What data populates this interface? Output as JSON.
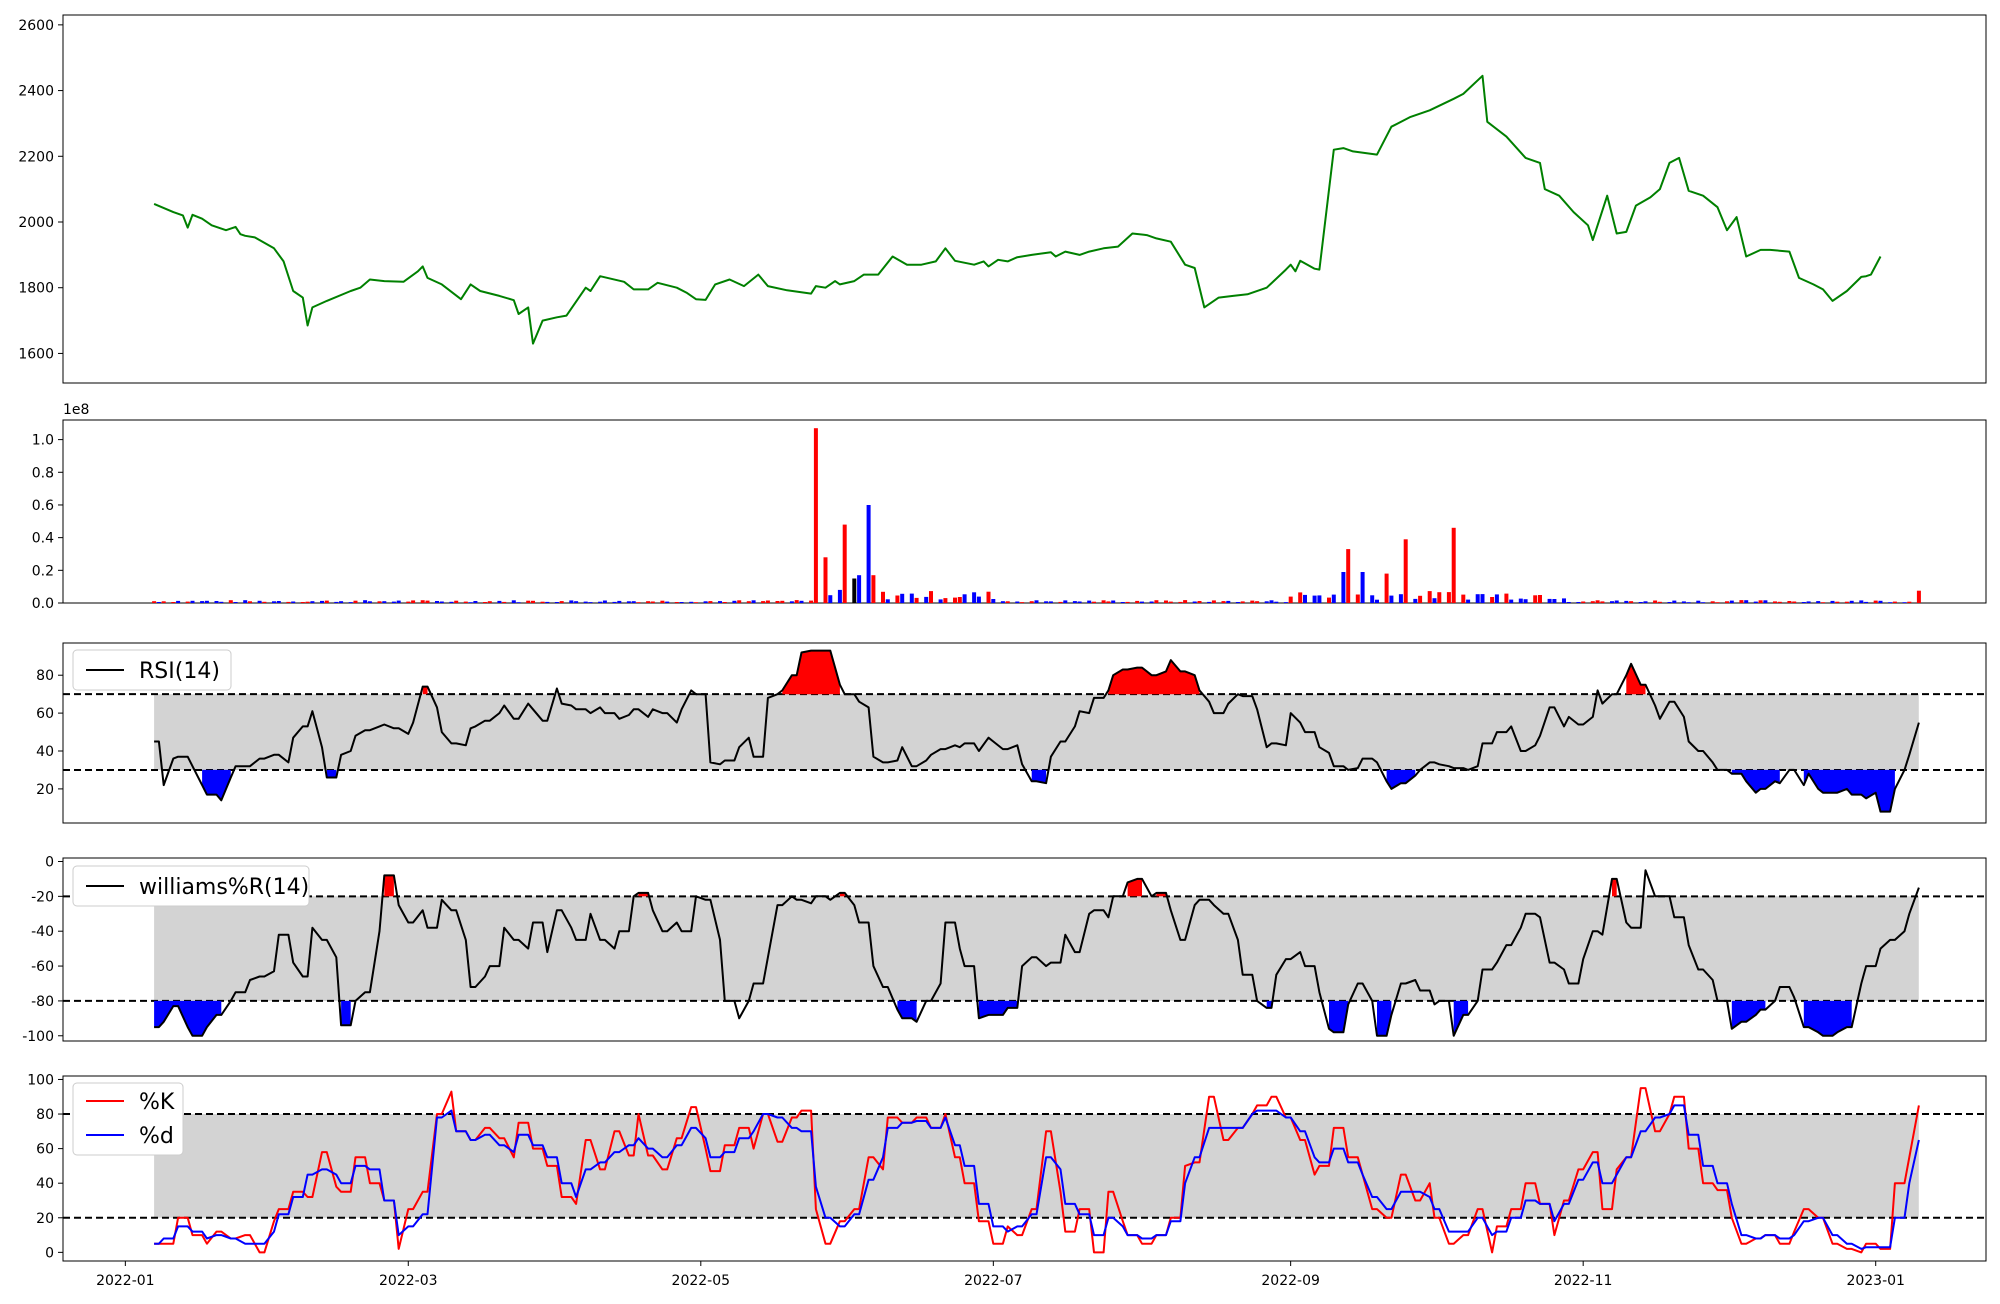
{
  "chart_data": [
    {
      "type": "line",
      "panel": "price",
      "x_range": [
        "2021-12-19",
        "2023-01-24"
      ],
      "ylim": [
        1510,
        2630
      ],
      "yticks": [
        1600,
        1800,
        2000,
        2200,
        2400,
        2600
      ],
      "series": [
        {
          "color": "#008000",
          "points": [
            [
              "2022-01-07",
              2055
            ],
            [
              "2022-01-11",
              2030
            ],
            [
              "2022-01-13",
              2020
            ],
            [
              "2022-01-14",
              1983
            ],
            [
              "2022-01-15",
              2022
            ],
            [
              "2022-01-17",
              2010
            ],
            [
              "2022-01-19",
              1990
            ],
            [
              "2022-01-22",
              1975
            ],
            [
              "2022-01-24",
              1985
            ],
            [
              "2022-01-25",
              1963
            ],
            [
              "2022-01-26",
              1958
            ],
            [
              "2022-01-28",
              1953
            ],
            [
              "2022-02-01",
              1920
            ],
            [
              "2022-02-03",
              1880
            ],
            [
              "2022-02-05",
              1790
            ],
            [
              "2022-02-07",
              1770
            ],
            [
              "2022-02-08",
              1685
            ],
            [
              "2022-02-09",
              1740
            ],
            [
              "2022-02-12",
              1760
            ],
            [
              "2022-02-17",
              1790
            ],
            [
              "2022-02-19",
              1800
            ],
            [
              "2022-02-21",
              1825
            ],
            [
              "2022-02-24",
              1820
            ],
            [
              "2022-02-28",
              1818
            ],
            [
              "2022-03-03",
              1850
            ],
            [
              "2022-03-04",
              1865
            ],
            [
              "2022-03-05",
              1830
            ],
            [
              "2022-03-08",
              1810
            ],
            [
              "2022-03-12",
              1765
            ],
            [
              "2022-03-14",
              1810
            ],
            [
              "2022-03-16",
              1790
            ],
            [
              "2022-03-20",
              1775
            ],
            [
              "2022-03-23",
              1762
            ],
            [
              "2022-03-24",
              1720
            ],
            [
              "2022-03-26",
              1740
            ],
            [
              "2022-03-27",
              1630
            ],
            [
              "2022-03-29",
              1700
            ],
            [
              "2022-04-01",
              1710
            ],
            [
              "2022-04-03",
              1715
            ],
            [
              "2022-04-07",
              1800
            ],
            [
              "2022-04-08",
              1790
            ],
            [
              "2022-04-10",
              1835
            ],
            [
              "2022-04-15",
              1818
            ],
            [
              "2022-04-17",
              1795
            ],
            [
              "2022-04-20",
              1795
            ],
            [
              "2022-04-22",
              1815
            ],
            [
              "2022-04-26",
              1800
            ],
            [
              "2022-04-28",
              1785
            ],
            [
              "2022-04-30",
              1765
            ],
            [
              "2022-05-02",
              1763
            ],
            [
              "2022-05-04",
              1810
            ],
            [
              "2022-05-07",
              1825
            ],
            [
              "2022-05-10",
              1805
            ],
            [
              "2022-05-13",
              1840
            ],
            [
              "2022-05-15",
              1805
            ],
            [
              "2022-05-19",
              1792
            ],
            [
              "2022-05-24",
              1782
            ],
            [
              "2022-05-25",
              1805
            ],
            [
              "2022-05-27",
              1800
            ],
            [
              "2022-05-29",
              1820
            ],
            [
              "2022-05-30",
              1810
            ],
            [
              "2022-06-02",
              1820
            ],
            [
              "2022-06-04",
              1840
            ],
            [
              "2022-06-07",
              1840
            ],
            [
              "2022-06-10",
              1895
            ],
            [
              "2022-06-13",
              1870
            ],
            [
              "2022-06-16",
              1870
            ],
            [
              "2022-06-19",
              1880
            ],
            [
              "2022-06-21",
              1920
            ],
            [
              "2022-06-23",
              1882
            ],
            [
              "2022-06-27",
              1870
            ],
            [
              "2022-06-29",
              1880
            ],
            [
              "2022-06-30",
              1865
            ],
            [
              "2022-07-02",
              1885
            ],
            [
              "2022-07-04",
              1880
            ],
            [
              "2022-07-06",
              1893
            ],
            [
              "2022-07-09",
              1900
            ],
            [
              "2022-07-13",
              1908
            ],
            [
              "2022-07-14",
              1895
            ],
            [
              "2022-07-16",
              1910
            ],
            [
              "2022-07-19",
              1900
            ],
            [
              "2022-07-21",
              1910
            ],
            [
              "2022-07-24",
              1920
            ],
            [
              "2022-07-27",
              1925
            ],
            [
              "2022-07-30",
              1965
            ],
            [
              "2022-08-02",
              1960
            ],
            [
              "2022-08-04",
              1950
            ],
            [
              "2022-08-07",
              1940
            ],
            [
              "2022-08-10",
              1870
            ],
            [
              "2022-08-12",
              1860
            ],
            [
              "2022-08-14",
              1740
            ],
            [
              "2022-08-17",
              1770
            ],
            [
              "2022-08-20",
              1775
            ],
            [
              "2022-08-23",
              1780
            ],
            [
              "2022-08-27",
              1800
            ],
            [
              "2022-08-31",
              1855
            ],
            [
              "2022-09-01",
              1870
            ],
            [
              "2022-09-02",
              1850
            ],
            [
              "2022-09-03",
              1882
            ],
            [
              "2022-09-06",
              1858
            ],
            [
              "2022-09-07",
              1855
            ],
            [
              "2022-09-10",
              2220
            ],
            [
              "2022-09-12",
              2225
            ],
            [
              "2022-09-14",
              2215
            ],
            [
              "2022-09-19",
              2205
            ],
            [
              "2022-09-22",
              2290
            ],
            [
              "2022-09-26",
              2320
            ],
            [
              "2022-09-30",
              2340
            ],
            [
              "2022-10-05",
              2375
            ],
            [
              "2022-10-07",
              2390
            ],
            [
              "2022-10-11",
              2445
            ],
            [
              "2022-10-12",
              2305
            ],
            [
              "2022-10-16",
              2260
            ],
            [
              "2022-10-20",
              2195
            ],
            [
              "2022-10-23",
              2180
            ],
            [
              "2022-10-24",
              2100
            ],
            [
              "2022-10-27",
              2080
            ],
            [
              "2022-10-30",
              2030
            ],
            [
              "2022-11-02",
              1990
            ],
            [
              "2022-11-03",
              1945
            ],
            [
              "2022-11-06",
              2080
            ],
            [
              "2022-11-08",
              1965
            ],
            [
              "2022-11-10",
              1970
            ],
            [
              "2022-11-12",
              2050
            ],
            [
              "2022-11-15",
              2075
            ],
            [
              "2022-11-17",
              2100
            ],
            [
              "2022-11-19",
              2180
            ],
            [
              "2022-11-21",
              2195
            ],
            [
              "2022-11-23",
              2095
            ],
            [
              "2022-11-26",
              2080
            ],
            [
              "2022-11-29",
              2045
            ],
            [
              "2022-12-01",
              1975
            ],
            [
              "2022-12-03",
              2015
            ],
            [
              "2022-12-05",
              1895
            ],
            [
              "2022-12-08",
              1915
            ],
            [
              "2022-12-10",
              1915
            ],
            [
              "2022-12-14",
              1910
            ],
            [
              "2022-12-16",
              1830
            ],
            [
              "2022-12-19",
              1810
            ],
            [
              "2022-12-21",
              1795
            ],
            [
              "2022-12-23",
              1760
            ],
            [
              "2022-12-26",
              1790
            ],
            [
              "2022-12-30",
              1835
            ],
            [
              "2022-12-31",
              1840
            ],
            [
              "2022-12-29",
              1833
            ],
            [
              "2023-01-02",
              1895
            ]
          ]
        }
      ]
    },
    {
      "type": "bar",
      "panel": "volume",
      "offset_label": "1e8",
      "ylim": [
        0,
        1.12
      ],
      "yticks": [
        "0.0",
        "0.2",
        "0.4",
        "0.6",
        "0.8",
        "1.0"
      ],
      "series_colors": [
        "#ff0000",
        "#0000ff",
        "#000000"
      ],
      "bars": []
    },
    {
      "type": "line",
      "panel": "rsi",
      "legend": "RSI(14)",
      "ylim": [
        2,
        97
      ],
      "yticks": [
        20,
        40,
        60,
        80
      ],
      "thresholds": [
        30,
        70
      ],
      "colors": {
        "line": "#000000",
        "band": "#d3d3d3",
        "over": "#ff0000",
        "under": "#0000ff"
      },
      "points": []
    },
    {
      "type": "line",
      "panel": "williams",
      "legend": "williams%R(14)",
      "ylim": [
        -103,
        2
      ],
      "yticks": [
        0,
        -20,
        -40,
        -60,
        -80,
        -100
      ],
      "thresholds": [
        -20,
        -80
      ],
      "colors": {
        "line": "#000000",
        "band": "#d3d3d3",
        "over": "#ff0000",
        "under": "#0000ff"
      },
      "points": []
    },
    {
      "type": "line",
      "panel": "stochastic",
      "ylim": [
        -5,
        102
      ],
      "yticks": [
        0,
        20,
        40,
        60,
        80,
        100
      ],
      "thresholds": [
        20,
        80
      ],
      "series": [
        {
          "name": "%K",
          "color": "#ff0000",
          "points": []
        },
        {
          "name": "%d",
          "color": "#0000ff",
          "points": []
        }
      ],
      "colors": {
        "band": "#d3d3d3"
      }
    }
  ],
  "x_axis": {
    "ticks": [
      "2022-01",
      "2022-03",
      "2022-05",
      "2022-07",
      "2022-09",
      "2022-11",
      "2023-01"
    ],
    "tick_dates": [
      "2022-01-01",
      "2022-03-01",
      "2022-05-01",
      "2022-07-01",
      "2022-09-01",
      "2022-11-01",
      "2023-01-01"
    ]
  }
}
